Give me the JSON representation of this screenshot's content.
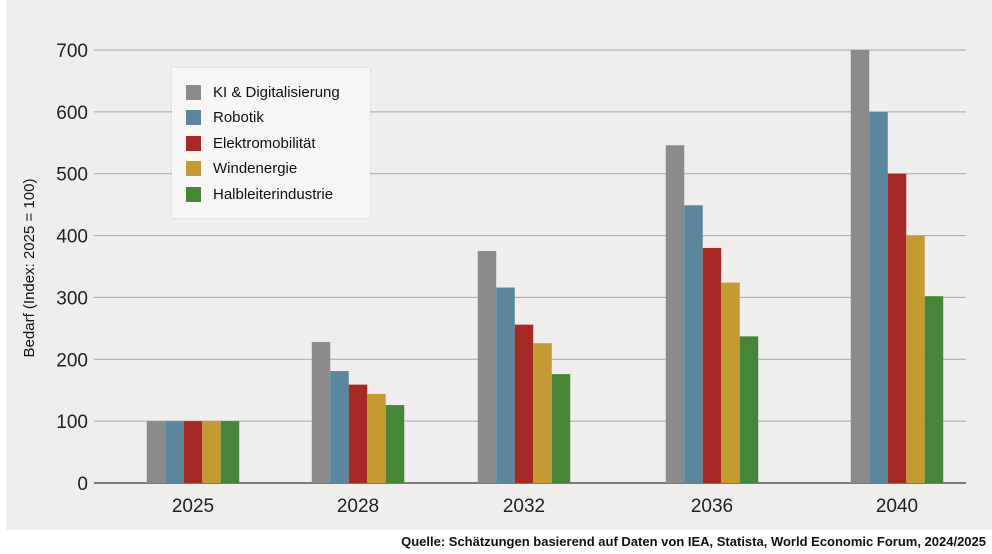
{
  "chart_data": {
    "type": "bar",
    "ylabel": "Bedarf (Index: 2025 = 100)",
    "xlabel": "",
    "ylim": [
      0,
      700
    ],
    "yticks": [
      0,
      100,
      200,
      300,
      400,
      500,
      600,
      700
    ],
    "categories": [
      "2025",
      "2028",
      "2032",
      "2036",
      "2040"
    ],
    "grid": true,
    "legend_position": "top-left",
    "series": [
      {
        "name": "KI & Digitalisierung",
        "color": "#8c8b8b",
        "values": [
          100,
          228,
          375,
          546,
          700
        ]
      },
      {
        "name": "Robotik",
        "color": "#5b879e",
        "values": [
          100,
          181,
          316,
          449,
          600
        ]
      },
      {
        "name": "Elektromobilität",
        "color": "#a52a26",
        "values": [
          100,
          159,
          256,
          380,
          500
        ]
      },
      {
        "name": "Windenergie",
        "color": "#c49a33",
        "values": [
          100,
          144,
          226,
          324,
          400
        ]
      },
      {
        "name": "Halbleiterindustrie",
        "color": "#478539",
        "values": [
          100,
          126,
          176,
          237,
          302
        ]
      }
    ]
  },
  "source": "Quelle: Schätzungen basierend auf Daten von IEA, Statista, World Economic Forum, 2024/2025"
}
